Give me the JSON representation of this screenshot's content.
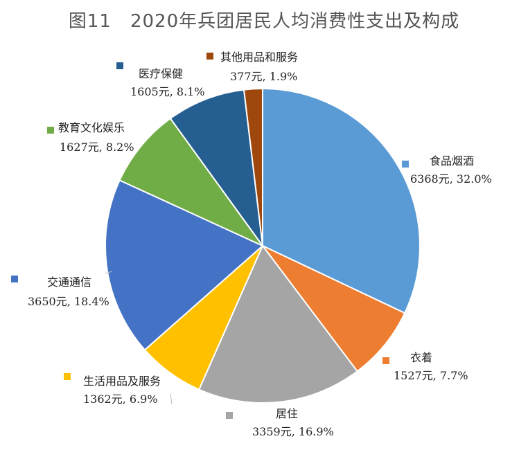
{
  "chart_data": {
    "type": "pie",
    "title": "图11　2020年兵团居民人均消费性支出及构成",
    "slices": [
      {
        "name": "食品烟酒",
        "value": 6368,
        "value_label": "6368元, 32.0%",
        "percent": 32.0,
        "color": "#5B9BD5"
      },
      {
        "name": "衣着",
        "value": 1527,
        "value_label": "1527元, 7.7%",
        "percent": 7.7,
        "color": "#ED7D31"
      },
      {
        "name": "居住",
        "value": 3359,
        "value_label": "3359元, 16.9%",
        "percent": 16.9,
        "color": "#A5A5A5"
      },
      {
        "name": "生活用品及服务",
        "value": 1362,
        "value_label": "1362元, 6.9%",
        "percent": 6.9,
        "color": "#FFC000"
      },
      {
        "name": "交通通信",
        "value": 3650,
        "value_label": "3650元, 18.4%",
        "percent": 18.4,
        "color": "#4472C4"
      },
      {
        "name": "教育文化娱乐",
        "value": 1627,
        "value_label": "1627元, 8.2%",
        "percent": 8.2,
        "color": "#70AD47"
      },
      {
        "name": "医疗保健",
        "value": 1605,
        "value_label": "1605元, 8.1%",
        "percent": 8.1,
        "color": "#255E91"
      },
      {
        "name": "其他用品和服务",
        "value": 377,
        "value_label": "377元, 1.9%",
        "percent": 1.9,
        "color": "#9E480E"
      }
    ]
  }
}
